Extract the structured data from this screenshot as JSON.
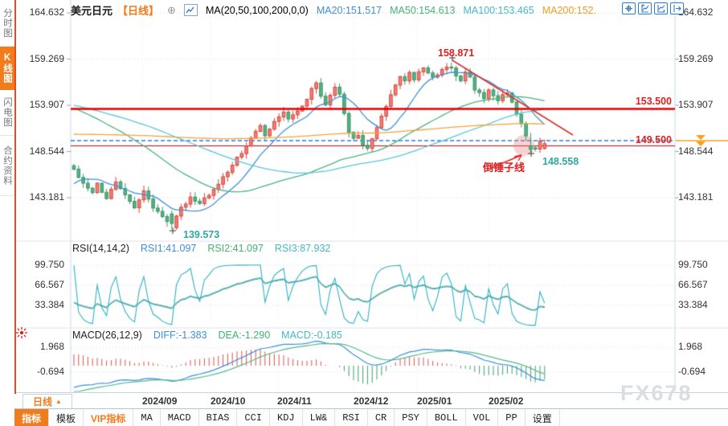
{
  "app": {
    "watermark": "FX678"
  },
  "sidebar": {
    "items": [
      {
        "label": "分时图",
        "active": false
      },
      {
        "label": "K线图",
        "active": true
      },
      {
        "label": "闪电图",
        "active": false
      },
      {
        "label": "合约资料",
        "active": false
      }
    ]
  },
  "header": {
    "symbol": "美元日元",
    "period_tag": "【日线】",
    "ma_formula": "MA(20,50,100,200,0,0)",
    "ma20": "MA20:151.517",
    "ma50": "MA50:154.613",
    "ma100": "MA100:153.465",
    "ma200": "MA200:152."
  },
  "main_chart": {
    "y_labels": [
      "164.632",
      "159.269",
      "153.907",
      "148.544",
      "143.181"
    ],
    "level_upper": "153.500",
    "level_lower": "149.500",
    "peak_label": "158.871",
    "low_label": "139.573",
    "swing_low_label": "148.558",
    "pattern_label": "倒锤子线"
  },
  "rsi_panel": {
    "title": "RSI(14,14,2)",
    "rsi1": "RSI1:41.097",
    "rsi2": "RSI2:41.097",
    "rsi3": "RSI3:87.932",
    "y_labels": [
      "99.750",
      "66.567",
      "33.384"
    ]
  },
  "macd_panel": {
    "title": "MACD(26,12,9)",
    "diff": "DIFF:-1.383",
    "dea": "DEA:-1.290",
    "macd": "MACD:-0.185",
    "y_labels": [
      "1.968",
      "-0.694"
    ]
  },
  "xaxis": {
    "period_button": "日线",
    "dates": [
      "2024/09",
      "2024/10",
      "2024/11",
      "2024/12",
      "2025/01",
      "2025/02"
    ]
  },
  "toolbar": {
    "tabs": [
      "指标",
      "模板",
      "VIP指标",
      "MA",
      "MACD",
      "BIAS",
      "CCI",
      "KDJ",
      "LW&",
      "RSI",
      "CR",
      "PSY",
      "BOLL",
      "VOL",
      "PP",
      "设置"
    ]
  },
  "chart_data": {
    "type": "candlestick",
    "title": "美元日元 日线 (USD/JPY daily) with MA, RSI, MACD",
    "price_axis": [
      164.632,
      159.269,
      153.907,
      148.544,
      143.181
    ],
    "rsi_axis": [
      99.75,
      66.567,
      33.384
    ],
    "macd_axis": [
      1.968,
      -0.694
    ],
    "key_values": {
      "high": 158.871,
      "low": 139.573,
      "swing_low": 148.558,
      "resistance_level": 153.5,
      "support_level": 149.5,
      "ma20": 151.517,
      "ma50": 154.613,
      "ma100": 153.465,
      "rsi1": 41.097,
      "rsi2": 41.097,
      "rsi3": 87.932,
      "diff": -1.383,
      "dea": -1.29,
      "macd": -0.185
    },
    "candle_count": 102,
    "price_path": [
      [
        0,
        146.4
      ],
      [
        2,
        145.0
      ],
      [
        4,
        143.6
      ],
      [
        5,
        144.8
      ],
      [
        7,
        143.2
      ],
      [
        9,
        144.9
      ],
      [
        11,
        143.4
      ],
      [
        13,
        142.2
      ],
      [
        15,
        143.9
      ],
      [
        17,
        142.0
      ],
      [
        19,
        141.1
      ],
      [
        21,
        139.9
      ],
      [
        23,
        141.9
      ],
      [
        25,
        143.3
      ],
      [
        27,
        142.4
      ],
      [
        29,
        143.6
      ],
      [
        31,
        144.9
      ],
      [
        33,
        146.2
      ],
      [
        35,
        147.7
      ],
      [
        37,
        149.1
      ],
      [
        39,
        150.7
      ],
      [
        40,
        151.5
      ],
      [
        41,
        150.3
      ],
      [
        43,
        151.9
      ],
      [
        45,
        153.1
      ],
      [
        46,
        152.2
      ],
      [
        48,
        153.4
      ],
      [
        50,
        154.4
      ],
      [
        51,
        155.7
      ],
      [
        52,
        156.3
      ],
      [
        53,
        154.9
      ],
      [
        54,
        154.1
      ],
      [
        55,
        155.0
      ],
      [
        56,
        156.1
      ],
      [
        57,
        155.0
      ],
      [
        58,
        152.9
      ],
      [
        59,
        150.9
      ],
      [
        60,
        149.9
      ],
      [
        61,
        150.4
      ],
      [
        62,
        149.4
      ],
      [
        63,
        148.8
      ],
      [
        64,
        150.2
      ],
      [
        65,
        151.5
      ],
      [
        66,
        152.7
      ],
      [
        67,
        153.7
      ],
      [
        68,
        155.0
      ],
      [
        69,
        156.4
      ],
      [
        70,
        157.2
      ],
      [
        71,
        156.7
      ],
      [
        72,
        157.7
      ],
      [
        73,
        157.0
      ],
      [
        74,
        157.8
      ],
      [
        75,
        158.3
      ],
      [
        76,
        157.8
      ],
      [
        77,
        157.1
      ],
      [
        78,
        157.5
      ],
      [
        79,
        158.2
      ],
      [
        80,
        158.5
      ],
      [
        81,
        158.1
      ],
      [
        82,
        157.3
      ],
      [
        83,
        156.6
      ],
      [
        84,
        157.6
      ],
      [
        85,
        157.0
      ],
      [
        86,
        155.8
      ],
      [
        87,
        155.2
      ],
      [
        88,
        154.8
      ],
      [
        89,
        155.7
      ],
      [
        90,
        155.1
      ],
      [
        91,
        154.4
      ],
      [
        92,
        155.3
      ],
      [
        93,
        155.5
      ],
      [
        94,
        154.3
      ],
      [
        95,
        153.0
      ],
      [
        96,
        151.6
      ],
      [
        97,
        150.3
      ],
      [
        98,
        148.9
      ],
      [
        99,
        149.0
      ],
      [
        100,
        149.7
      ],
      [
        101,
        149.35
      ]
    ],
    "prehistory_path": [
      [
        0,
        141.0
      ],
      [
        60,
        144.0
      ],
      [
        120,
        146.5
      ],
      [
        180,
        149.0
      ],
      [
        220,
        152.0
      ],
      [
        250,
        156.0
      ],
      [
        268,
        161.5
      ],
      [
        278,
        156.0
      ],
      [
        286,
        147.5
      ],
      [
        290,
        141.8
      ],
      [
        295,
        144.8
      ],
      [
        299,
        146.2
      ]
    ],
    "month_ticks_x": [
      177,
      262,
      345,
      440,
      519,
      608
    ],
    "colors": {
      "up": "#ef8078",
      "up_stroke": "#d8453a",
      "down": "#55b285",
      "down_stroke": "#3c9468",
      "ma20": "#3d8fd8",
      "ma50": "#4db37f",
      "ma100": "#58c5dc",
      "ma200": "#f5a33c",
      "level_red": "#e10000",
      "dashed_blue": "#2f7ed8",
      "trend_red": "#d93025",
      "orange_marker": "#f5a01e",
      "hist_pos": "#d9534f",
      "hist_neg": "#3fa06a",
      "rsi_fast": "#2fb0c6",
      "rsi_slow": "#54b98c",
      "accent": "#f07c1c"
    }
  }
}
